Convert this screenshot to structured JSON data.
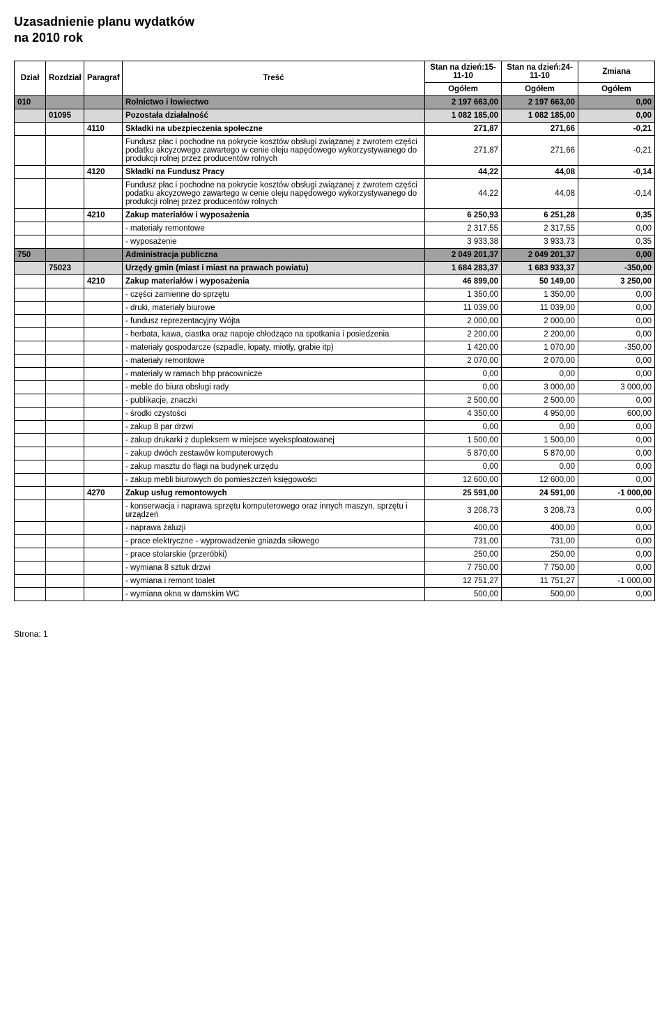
{
  "title_line1": "Uzasadnienie planu wydatków",
  "title_line2": "na 2010 rok",
  "headers": {
    "dzial": "Dział",
    "rozdzial": "Rozdział",
    "paragraf": "Paragraf",
    "tresc": "Treść",
    "stan1": "Stan na dzień:15-11-10",
    "stan2": "Stan na dzień:24-11-10",
    "zmiana": "Zmiana",
    "ogolem": "Ogółem"
  },
  "rows": [
    {
      "cls": "section-dark",
      "dzial": "010",
      "rozdzial": "",
      "paragraf": "",
      "tresc": "Rolnictwo i łowiectwo",
      "v1": "2 197 663,00",
      "v2": "2 197 663,00",
      "v3": "0,00"
    },
    {
      "cls": "section-light",
      "dzial": "",
      "rozdzial": "01095",
      "paragraf": "",
      "tresc": "Pozostała działalność",
      "v1": "1 082 185,00",
      "v2": "1 082 185,00",
      "v3": "0,00"
    },
    {
      "cls": "bold-row",
      "dzial": "",
      "rozdzial": "",
      "paragraf": "4110",
      "tresc": "Składki na ubezpieczenia społeczne",
      "v1": "271,87",
      "v2": "271,66",
      "v3": "-0,21"
    },
    {
      "cls": "",
      "dzial": "",
      "rozdzial": "",
      "paragraf": "",
      "tresc": "Fundusz płac i pochodne na pokrycie kosztów obsługi związanej z zwrotem części podatku akcyzowego zawartego w cenie oleju napędowego wykorzystywanego do produkcji rolnej przez producentów rolnych",
      "v1": "271,87",
      "v2": "271,66",
      "v3": "-0,21"
    },
    {
      "cls": "bold-row",
      "dzial": "",
      "rozdzial": "",
      "paragraf": "4120",
      "tresc": "Składki na Fundusz Pracy",
      "v1": "44,22",
      "v2": "44,08",
      "v3": "-0,14"
    },
    {
      "cls": "",
      "dzial": "",
      "rozdzial": "",
      "paragraf": "",
      "tresc": "Fundusz płac i pochodne na pokrycie kosztów obsługi związanej z zwrotem części podatku akcyzowego zawartego w cenie oleju napędowego wykorzystywanego do produkcji rolnej przez producentów rolnych",
      "v1": "44,22",
      "v2": "44,08",
      "v3": "-0,14"
    },
    {
      "cls": "bold-row",
      "dzial": "",
      "rozdzial": "",
      "paragraf": "4210",
      "tresc": "Zakup materiałów i wyposażenia",
      "v1": "6 250,93",
      "v2": "6 251,28",
      "v3": "0,35"
    },
    {
      "cls": "",
      "dzial": "",
      "rozdzial": "",
      "paragraf": "",
      "tresc": "- materiały remontowe",
      "v1": "2 317,55",
      "v2": "2 317,55",
      "v3": "0,00"
    },
    {
      "cls": "",
      "dzial": "",
      "rozdzial": "",
      "paragraf": "",
      "tresc": "- wyposażenie",
      "v1": "3 933,38",
      "v2": "3 933,73",
      "v3": "0,35"
    },
    {
      "cls": "section-dark",
      "dzial": "750",
      "rozdzial": "",
      "paragraf": "",
      "tresc": "Administracja publiczna",
      "v1": "2 049 201,37",
      "v2": "2 049 201,37",
      "v3": "0,00"
    },
    {
      "cls": "section-light",
      "dzial": "",
      "rozdzial": "75023",
      "paragraf": "",
      "tresc": "Urzędy gmin (miast i miast na prawach powiatu)",
      "v1": "1 684 283,37",
      "v2": "1 683 933,37",
      "v3": "-350,00"
    },
    {
      "cls": "bold-row",
      "dzial": "",
      "rozdzial": "",
      "paragraf": "4210",
      "tresc": "Zakup materiałów i wyposażenia",
      "v1": "46 899,00",
      "v2": "50 149,00",
      "v3": "3 250,00"
    },
    {
      "cls": "",
      "dzial": "",
      "rozdzial": "",
      "paragraf": "",
      "tresc": "- części zamienne do sprzętu",
      "v1": "1 350,00",
      "v2": "1 350,00",
      "v3": "0,00"
    },
    {
      "cls": "",
      "dzial": "",
      "rozdzial": "",
      "paragraf": "",
      "tresc": "- druki, materiały biurowe",
      "v1": "11 039,00",
      "v2": "11 039,00",
      "v3": "0,00"
    },
    {
      "cls": "",
      "dzial": "",
      "rozdzial": "",
      "paragraf": "",
      "tresc": "- fundusz reprezentacyjny Wójta",
      "v1": "2 000,00",
      "v2": "2 000,00",
      "v3": "0,00"
    },
    {
      "cls": "",
      "dzial": "",
      "rozdzial": "",
      "paragraf": "",
      "tresc": "- herbata, kawa, ciastka oraz napoje chłodzące na spotkania i posiedzenia",
      "v1": "2 200,00",
      "v2": "2 200,00",
      "v3": "0,00"
    },
    {
      "cls": "",
      "dzial": "",
      "rozdzial": "",
      "paragraf": "",
      "tresc": "- materiały gospodarcze (szpadle, łopaty, miotły, grabie itp)",
      "v1": "1 420,00",
      "v2": "1 070,00",
      "v3": "-350,00"
    },
    {
      "cls": "",
      "dzial": "",
      "rozdzial": "",
      "paragraf": "",
      "tresc": "- materiały remontowe",
      "v1": "2 070,00",
      "v2": "2 070,00",
      "v3": "0,00"
    },
    {
      "cls": "",
      "dzial": "",
      "rozdzial": "",
      "paragraf": "",
      "tresc": "- materiały w ramach bhp pracownicze",
      "v1": "0,00",
      "v2": "0,00",
      "v3": "0,00"
    },
    {
      "cls": "",
      "dzial": "",
      "rozdzial": "",
      "paragraf": "",
      "tresc": "- meble do biura obsługi rady",
      "v1": "0,00",
      "v2": "3 000,00",
      "v3": "3 000,00"
    },
    {
      "cls": "",
      "dzial": "",
      "rozdzial": "",
      "paragraf": "",
      "tresc": "- publikacje, znaczki",
      "v1": "2 500,00",
      "v2": "2 500,00",
      "v3": "0,00"
    },
    {
      "cls": "",
      "dzial": "",
      "rozdzial": "",
      "paragraf": "",
      "tresc": "- środki czystości",
      "v1": "4 350,00",
      "v2": "4 950,00",
      "v3": "600,00"
    },
    {
      "cls": "",
      "dzial": "",
      "rozdzial": "",
      "paragraf": "",
      "tresc": "- zakup 8 par drzwi",
      "v1": "0,00",
      "v2": "0,00",
      "v3": "0,00"
    },
    {
      "cls": "",
      "dzial": "",
      "rozdzial": "",
      "paragraf": "",
      "tresc": "- zakup drukarki z dupleksem w miejsce wyeksploatowanej",
      "v1": "1 500,00",
      "v2": "1 500,00",
      "v3": "0,00"
    },
    {
      "cls": "",
      "dzial": "",
      "rozdzial": "",
      "paragraf": "",
      "tresc": "- zakup dwóch zestawów komputerowych",
      "v1": "5 870,00",
      "v2": "5 870,00",
      "v3": "0,00"
    },
    {
      "cls": "",
      "dzial": "",
      "rozdzial": "",
      "paragraf": "",
      "tresc": "- zakup masztu do flagi na budynek urzędu",
      "v1": "0,00",
      "v2": "0,00",
      "v3": "0,00"
    },
    {
      "cls": "",
      "dzial": "",
      "rozdzial": "",
      "paragraf": "",
      "tresc": "- zakup mebli biurowych do pomieszczeń księgowości",
      "v1": "12 600,00",
      "v2": "12 600,00",
      "v3": "0,00"
    },
    {
      "cls": "bold-row",
      "dzial": "",
      "rozdzial": "",
      "paragraf": "4270",
      "tresc": "Zakup usług remontowych",
      "v1": "25 591,00",
      "v2": "24 591,00",
      "v3": "-1 000,00"
    },
    {
      "cls": "",
      "dzial": "",
      "rozdzial": "",
      "paragraf": "",
      "tresc": "- konserwacja i naprawa sprzętu komputerowego oraz innych maszyn, sprzętu i urządzeń",
      "v1": "3 208,73",
      "v2": "3 208,73",
      "v3": "0,00"
    },
    {
      "cls": "",
      "dzial": "",
      "rozdzial": "",
      "paragraf": "",
      "tresc": "- naprawa żaluzji",
      "v1": "400,00",
      "v2": "400,00",
      "v3": "0,00"
    },
    {
      "cls": "",
      "dzial": "",
      "rozdzial": "",
      "paragraf": "",
      "tresc": "- prace elektryczne - wyprowadzenie gniazda siłowego",
      "v1": "731,00",
      "v2": "731,00",
      "v3": "0,00"
    },
    {
      "cls": "",
      "dzial": "",
      "rozdzial": "",
      "paragraf": "",
      "tresc": "- prace stolarskie (przeróbki)",
      "v1": "250,00",
      "v2": "250,00",
      "v3": "0,00"
    },
    {
      "cls": "",
      "dzial": "",
      "rozdzial": "",
      "paragraf": "",
      "tresc": "- wymiana 8 sztuk drzwi",
      "v1": "7 750,00",
      "v2": "7 750,00",
      "v3": "0,00"
    },
    {
      "cls": "",
      "dzial": "",
      "rozdzial": "",
      "paragraf": "",
      "tresc": "- wymiana i remont toalet",
      "v1": "12 751,27",
      "v2": "11 751,27",
      "v3": "-1 000,00"
    },
    {
      "cls": "",
      "dzial": "",
      "rozdzial": "",
      "paragraf": "",
      "tresc": "- wymiana okna w damskim WC",
      "v1": "500,00",
      "v2": "500,00",
      "v3": "0,00"
    }
  ],
  "footer": "Strona:  1",
  "colors": {
    "section_dark": "#a0a0a0",
    "section_light": "#d8d8d8",
    "border": "#000000",
    "background": "#ffffff"
  }
}
